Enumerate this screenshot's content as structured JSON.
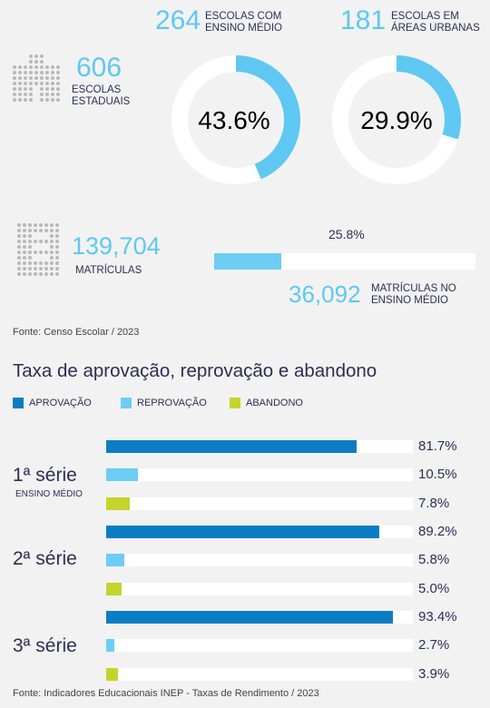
{
  "top_stats": {
    "estaduais": {
      "value": "606",
      "label_line1": "ESCOLAS",
      "label_line2": "ESTADUAIS"
    },
    "ensino_medio": {
      "value": "264",
      "label_line1": "ESCOLAS COM",
      "label_line2": "ENSINO MÉDIO"
    },
    "urbanas": {
      "value": "181",
      "label_line1": "ESCOLAS EM",
      "label_line2": "ÁREAS URBANAS"
    },
    "matriculas": {
      "value": "139,704",
      "label": "MATRÍCULAS"
    },
    "matriculas_em": {
      "value": "36,092",
      "label_line1": "MATRÍCULAS NO",
      "label_line2": "ENSINO MÉDIO"
    }
  },
  "donuts": [
    {
      "pct": 43.6,
      "label": "43.6%"
    },
    {
      "pct": 29.9,
      "label": "29.9%"
    }
  ],
  "matriculas_bar": {
    "pct": 25.8,
    "label": "25.8%"
  },
  "source_top": "Fonte: Censo Escolar / 2023",
  "section_title": "Taxa de aprovação, reprovação e abandono",
  "legend": [
    {
      "name": "APROVAÇÃO",
      "color": "#0b7dc4"
    },
    {
      "name": "REPROVAÇÃO",
      "color": "#6dcdf5"
    },
    {
      "name": "ABANDONO",
      "color": "#c5d42a"
    }
  ],
  "colors": {
    "accent": "#5ec8f2",
    "track": "#ffffff",
    "ring_track": "#ffffff"
  },
  "chart_data": {
    "type": "bar",
    "orientation": "horizontal",
    "title": "Taxa de aprovação, reprovação e abandono",
    "categories": [
      "1ª série",
      "2ª série",
      "3ª série"
    ],
    "category_sub": [
      "ENSINO MÉDIO",
      "",
      ""
    ],
    "xlim": [
      0,
      100
    ],
    "series": [
      {
        "name": "APROVAÇÃO",
        "values": [
          81.7,
          89.2,
          93.4
        ],
        "labels": [
          "81.7%",
          "89.2%",
          "93.4%"
        ]
      },
      {
        "name": "REPROVAÇÃO",
        "values": [
          10.5,
          5.8,
          2.7
        ],
        "labels": [
          "10.5%",
          "5.8%",
          "2.7%"
        ]
      },
      {
        "name": "ABANDONO",
        "values": [
          7.8,
          5.0,
          3.9
        ],
        "labels": [
          "7.8%",
          "5.0%",
          "3.9%"
        ]
      }
    ]
  },
  "source_bottom": "Fonte: Indicadores Educacionais INEP - Taxas de Rendimento / 2023"
}
